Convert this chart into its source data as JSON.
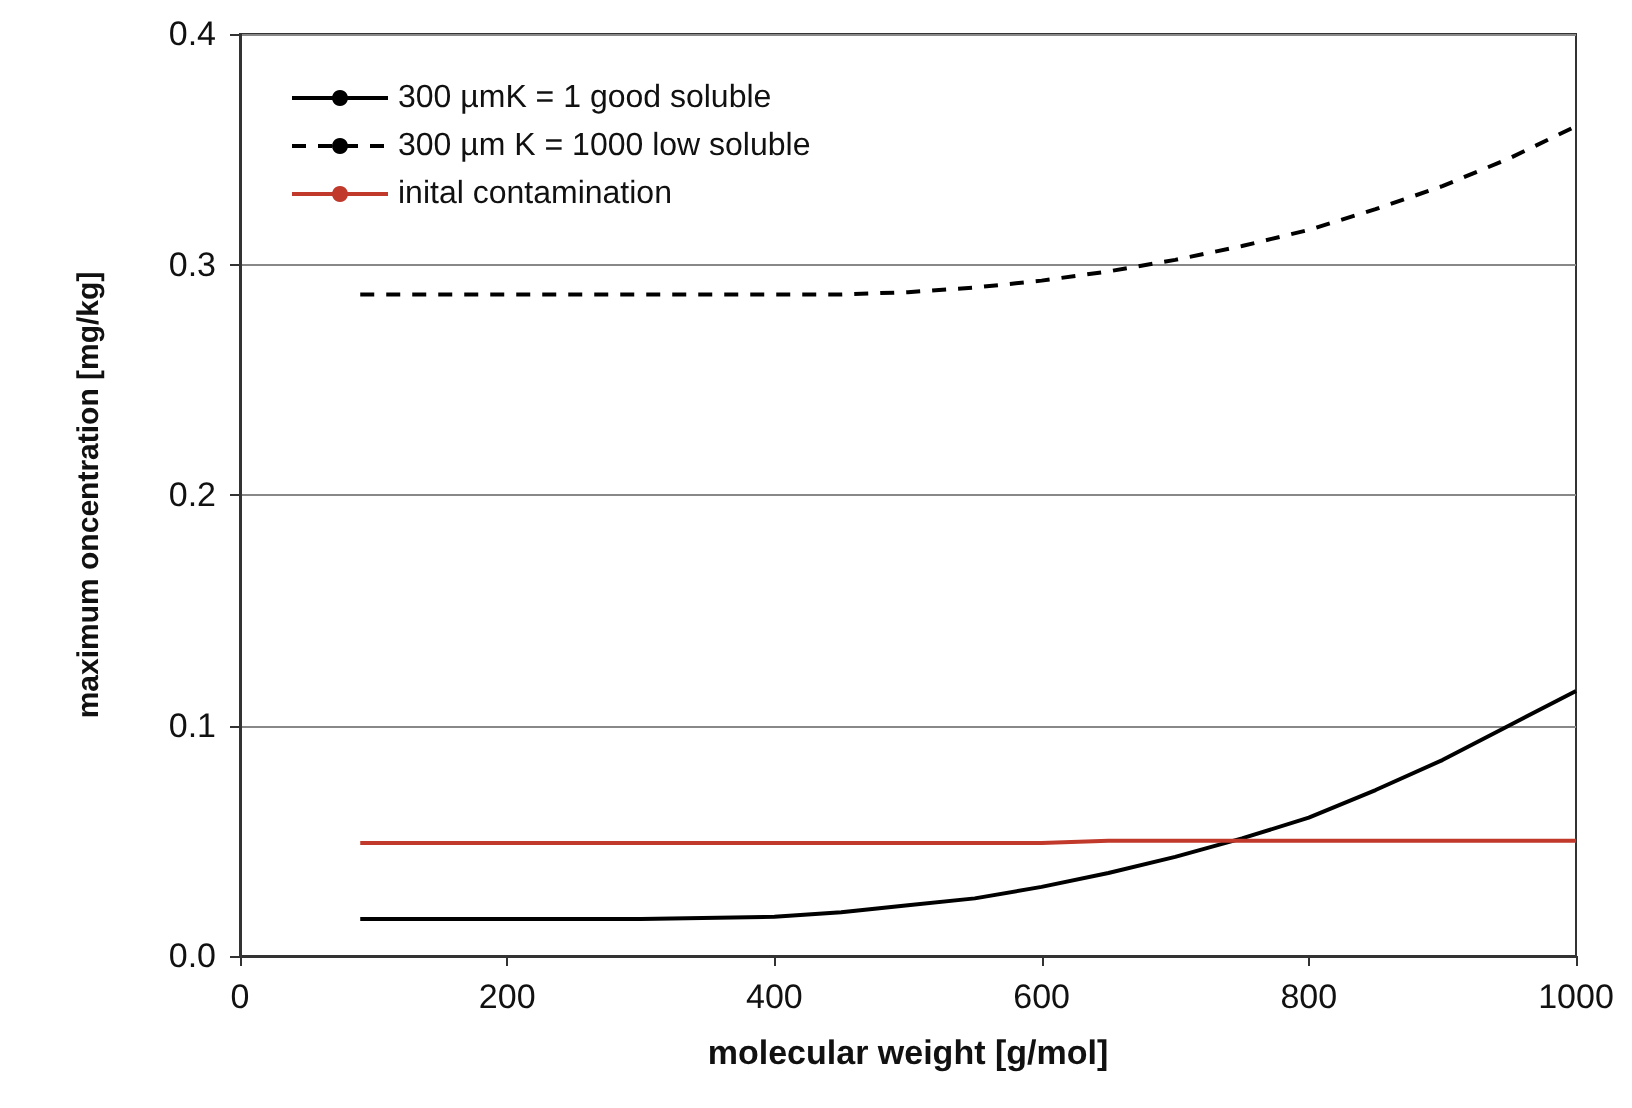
{
  "chart_data": {
    "type": "line",
    "xlabel": "molecular weight [g/mol]",
    "ylabel": "maximum oncentration [mg/kg]",
    "x": [
      90,
      200,
      300,
      400,
      450,
      500,
      550,
      600,
      650,
      700,
      750,
      800,
      850,
      900,
      950,
      1000
    ],
    "series": [
      {
        "name": "300 µmK = 1 good soluble",
        "color": "#000000",
        "line_style": "solid",
        "values": [
          0.016,
          0.016,
          0.016,
          0.017,
          0.019,
          0.022,
          0.025,
          0.03,
          0.036,
          0.043,
          0.051,
          0.06,
          0.072,
          0.085,
          0.1,
          0.115
        ]
      },
      {
        "name": "300 µm K = 1000 low soluble",
        "color": "#000000",
        "line_style": "dashed",
        "values": [
          0.287,
          0.287,
          0.287,
          0.287,
          0.287,
          0.288,
          0.29,
          0.293,
          0.297,
          0.302,
          0.308,
          0.315,
          0.324,
          0.334,
          0.346,
          0.36
        ]
      },
      {
        "name": "inital contamination",
        "color": "#c0392b",
        "line_style": "solid",
        "values": [
          0.049,
          0.049,
          0.049,
          0.049,
          0.049,
          0.049,
          0.049,
          0.049,
          0.05,
          0.05,
          0.05,
          0.05,
          0.05,
          0.05,
          0.05,
          0.05
        ]
      }
    ],
    "xlim": [
      0,
      1000
    ],
    "xticks": [
      0,
      200,
      400,
      600,
      800,
      1000
    ],
    "ylim": [
      0,
      0.4
    ],
    "yticks": [
      {
        "value": 0,
        "label": "0.0"
      },
      {
        "value": 0.1,
        "label": "0.1"
      },
      {
        "value": 0.2,
        "label": "0.2"
      },
      {
        "value": 0.3,
        "label": "0.3"
      },
      {
        "value": 0.4,
        "label": "0.4"
      }
    ],
    "grid": "y",
    "legend": "top left",
    "marker": "none"
  }
}
